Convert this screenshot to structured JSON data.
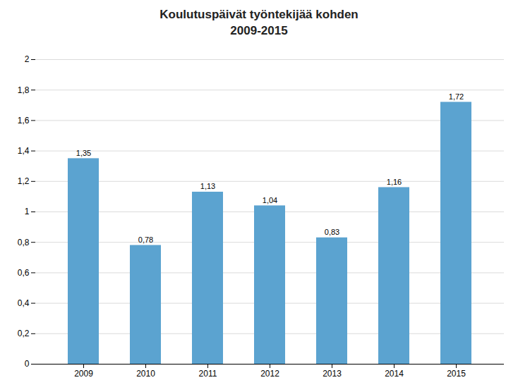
{
  "chart_data": {
    "type": "bar",
    "title": "Koulutuspäivät työntekijää kohden\n2009-2015",
    "categories": [
      "2009",
      "2010",
      "2011",
      "2012",
      "2013",
      "2014",
      "2015"
    ],
    "values": [
      1.35,
      0.78,
      1.13,
      1.04,
      0.83,
      1.16,
      1.72
    ],
    "value_labels": [
      "1,35",
      "0,78",
      "1,13",
      "1,04",
      "0,83",
      "1,16",
      "1,72"
    ],
    "data_labels": true,
    "color": "#5ba3d0",
    "ylim": [
      0,
      2.0
    ],
    "yticks": [
      0,
      {
        "value": 0.2,
        "label": "0,2"
      },
      {
        "value": 0.4,
        "label": "0,4"
      },
      {
        "value": 0.6,
        "label": "0,6"
      },
      {
        "value": 0.8,
        "label": "0,8"
      },
      1,
      {
        "value": 1.2,
        "label": "1,2"
      },
      {
        "value": 1.4,
        "label": "1,4"
      },
      {
        "value": 1.6,
        "label": "1,6"
      },
      {
        "value": 1.8,
        "label": "1,8"
      },
      2
    ],
    "grid": true
  }
}
